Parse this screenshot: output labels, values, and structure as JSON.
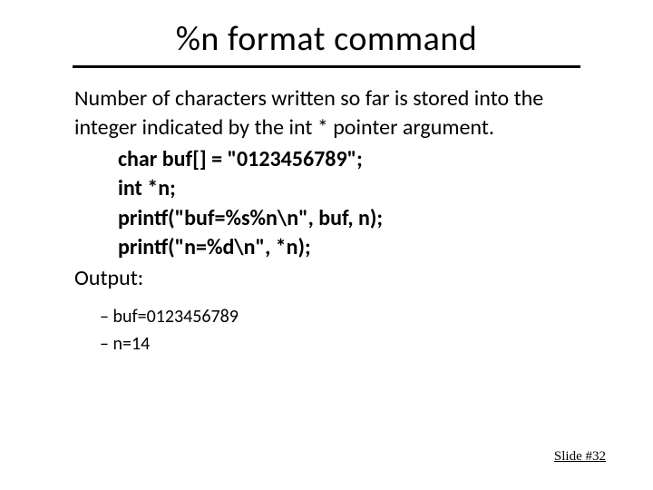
{
  "title": "%n format command",
  "para1": "Number of characters written so far is stored into the integer indicated by the int * pointer argument.",
  "code": {
    "l1": "char buf[] = \"0123456789\";",
    "l2": "int *n;",
    "l3": "printf(\"buf=%s%n\\n\", buf, n);",
    "l4": "printf(\"n=%d\\n\", *n);"
  },
  "output_label": "Output:",
  "outputs": {
    "o1": "buf=0123456789",
    "o2": "n=14"
  },
  "footer": "Slide #32"
}
